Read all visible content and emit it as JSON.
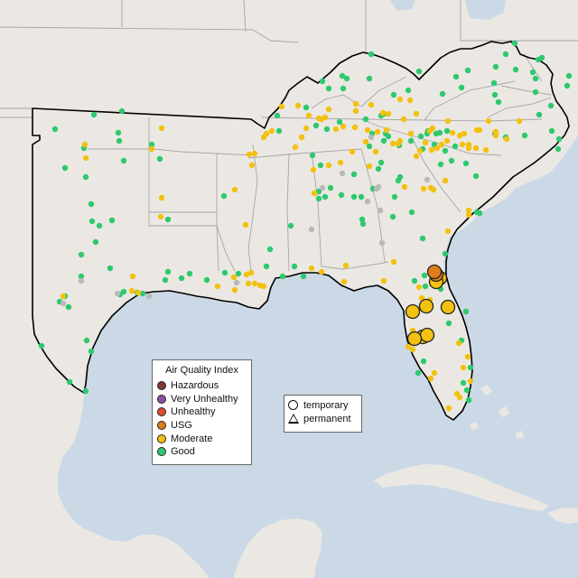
{
  "legend": {
    "title": "Air Quality Index",
    "levels": [
      {
        "label": "Hazardous",
        "color": "#7e3b32"
      },
      {
        "label": "Very Unhealthy",
        "color": "#8e4fa6"
      },
      {
        "label": "Unhealthy",
        "color": "#e04a2a"
      },
      {
        "label": "USG",
        "color": "#e07b1a"
      },
      {
        "label": "Moderate",
        "color": "#f3c10f"
      },
      {
        "label": "Good",
        "color": "#2ec96e"
      }
    ]
  },
  "monitor_types": {
    "temporary": "temporary",
    "permanent": "permanent"
  },
  "colors": {
    "water": "#cbd9e6",
    "land": "#ebe8e4",
    "region_outline": "#000000",
    "state_lines": "#9a9a9a",
    "inactive_monitor": "#b9b9b9"
  }
}
